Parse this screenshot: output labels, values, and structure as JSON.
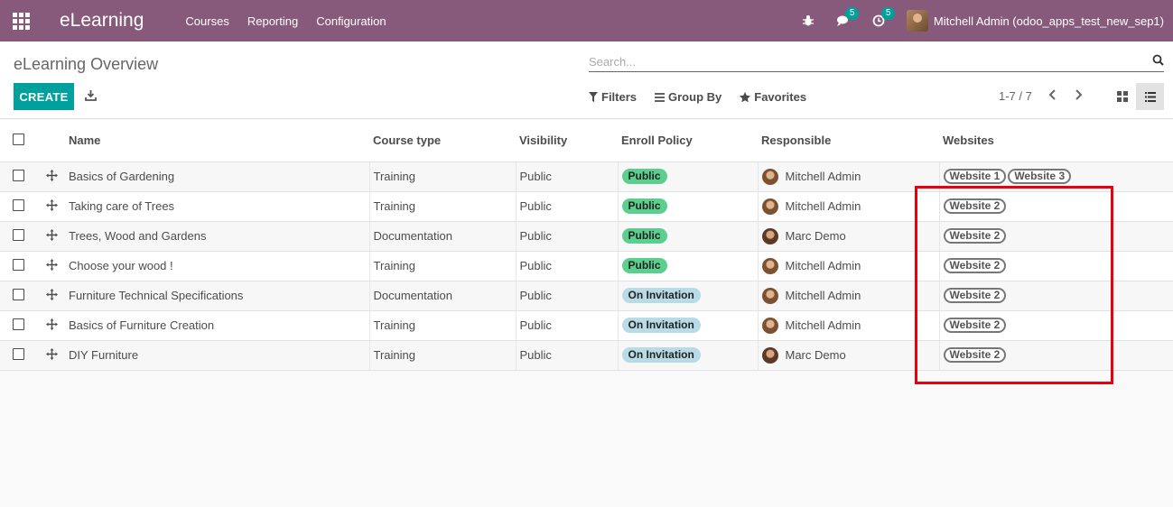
{
  "navbar": {
    "brand": "eLearning",
    "menu": [
      "Courses",
      "Reporting",
      "Configuration"
    ],
    "messages_count": "5",
    "activities_count": "5",
    "user": "Mitchell Admin (odoo_apps_test_new_sep1)"
  },
  "control": {
    "breadcrumb": "eLearning Overview",
    "search_placeholder": "Search...",
    "create_label": "CREATE",
    "filters_label": "Filters",
    "groupby_label": "Group By",
    "favorites_label": "Favorites",
    "pager": "1-7 / 7"
  },
  "table": {
    "headers": {
      "name": "Name",
      "course_type": "Course type",
      "visibility": "Visibility",
      "enroll_policy": "Enroll Policy",
      "responsible": "Responsible",
      "websites": "Websites"
    },
    "rows": [
      {
        "name": "Basics of Gardening",
        "course_type": "Training",
        "visibility": "Public",
        "enroll": "Public",
        "enroll_kind": "public",
        "responsible": "Mitchell Admin",
        "websites": [
          "Website 1",
          "Website 3"
        ]
      },
      {
        "name": "Taking care of Trees",
        "course_type": "Training",
        "visibility": "Public",
        "enroll": "Public",
        "enroll_kind": "public",
        "responsible": "Mitchell Admin",
        "websites": [
          "Website 2"
        ]
      },
      {
        "name": "Trees, Wood and Gardens",
        "course_type": "Documentation",
        "visibility": "Public",
        "enroll": "Public",
        "enroll_kind": "public",
        "responsible": "Marc Demo",
        "websites": [
          "Website 2"
        ]
      },
      {
        "name": "Choose your wood !",
        "course_type": "Training",
        "visibility": "Public",
        "enroll": "Public",
        "enroll_kind": "public",
        "responsible": "Mitchell Admin",
        "websites": [
          "Website 2"
        ]
      },
      {
        "name": "Furniture Technical Specifications",
        "course_type": "Documentation",
        "visibility": "Public",
        "enroll": "On Invitation",
        "enroll_kind": "invite",
        "responsible": "Mitchell Admin",
        "websites": [
          "Website 2"
        ]
      },
      {
        "name": "Basics of Furniture Creation",
        "course_type": "Training",
        "visibility": "Public",
        "enroll": "On Invitation",
        "enroll_kind": "invite",
        "responsible": "Mitchell Admin",
        "websites": [
          "Website 2"
        ]
      },
      {
        "name": "DIY Furniture",
        "course_type": "Training",
        "visibility": "Public",
        "enroll": "On Invitation",
        "enroll_kind": "invite",
        "responsible": "Marc Demo",
        "websites": [
          "Website 2"
        ]
      }
    ]
  },
  "colors": {
    "navbar": "#875a7b",
    "primary": "#00a09d",
    "pill_public": "#5bcf8d",
    "pill_invite": "#b8dbe6",
    "highlight": "#e8000e"
  }
}
